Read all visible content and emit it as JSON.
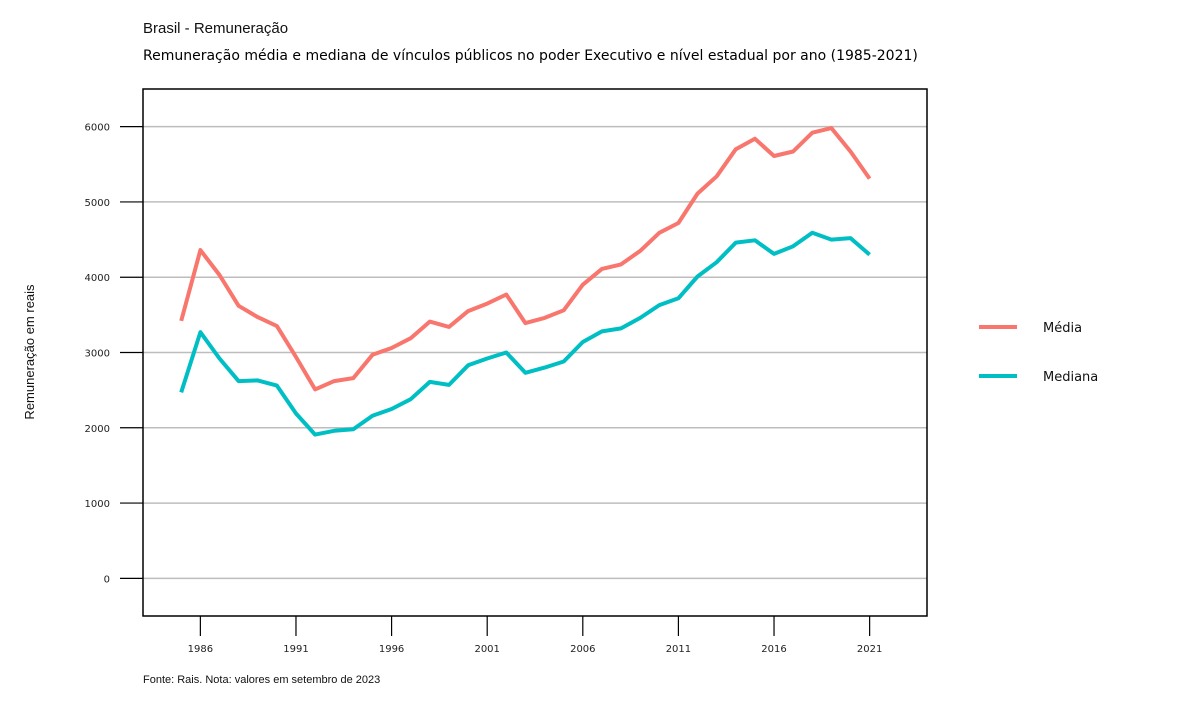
{
  "header": {
    "title": "Brasil - Remuneração",
    "subtitle": "Remuneração média e mediana de vínculos públicos no poder Executivo e nível estadual por ano (1985-2021)"
  },
  "footer": {
    "source": "Fonte: Rais. Nota: valores em setembro de 2023"
  },
  "chart_data": {
    "type": "line",
    "title": "Remuneração média e mediana de vínculos públicos no poder Executivo e nível estadual por ano (1985-2021)",
    "xlabel": "",
    "ylabel": "Remuneração em reais",
    "xlim": [
      1983,
      2024
    ],
    "ylim": [
      -500,
      6500
    ],
    "x_ticks": [
      1986,
      1991,
      1996,
      2001,
      2006,
      2011,
      2016,
      2021
    ],
    "y_ticks": [
      0,
      1000,
      2000,
      3000,
      4000,
      5000,
      6000
    ],
    "grid": "horizontal",
    "legend_position": "right",
    "x": [
      1985,
      1986,
      1987,
      1988,
      1989,
      1990,
      1991,
      1992,
      1993,
      1994,
      1995,
      1996,
      1997,
      1998,
      1999,
      2000,
      2001,
      2002,
      2003,
      2004,
      2005,
      2006,
      2007,
      2008,
      2009,
      2010,
      2011,
      2012,
      2013,
      2014,
      2015,
      2016,
      2017,
      2018,
      2019,
      2020,
      2021
    ],
    "series": [
      {
        "name": "Média",
        "color": "#F8766D",
        "values": [
          3420,
          4360,
          4030,
          3620,
          3470,
          3350,
          2940,
          2510,
          2620,
          2660,
          2970,
          3060,
          3190,
          3410,
          3340,
          3550,
          3650,
          3770,
          3390,
          3460,
          3560,
          3900,
          4110,
          4170,
          4350,
          4590,
          4720,
          5110,
          5340,
          5700,
          5840,
          5610,
          5670,
          5920,
          5980,
          5670,
          5310
        ]
      },
      {
        "name": "Mediana",
        "color": "#00BFC4",
        "values": [
          2470,
          3270,
          2920,
          2620,
          2630,
          2560,
          2190,
          1910,
          1960,
          1980,
          2160,
          2250,
          2380,
          2610,
          2570,
          2830,
          2920,
          3000,
          2730,
          2800,
          2880,
          3140,
          3280,
          3320,
          3460,
          3630,
          3720,
          4010,
          4200,
          4460,
          4490,
          4310,
          4410,
          4590,
          4500,
          4520,
          4300
        ]
      }
    ]
  }
}
